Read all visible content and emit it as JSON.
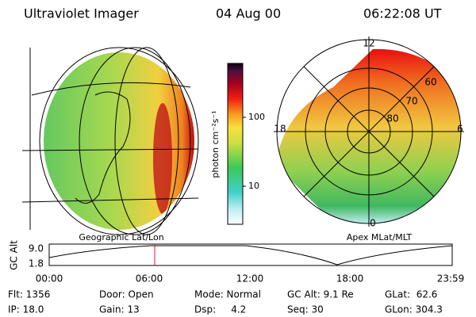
{
  "header": {
    "title": "Ultraviolet Imager",
    "date": "04 Aug 00",
    "time": "06:22:08 UT"
  },
  "left_map": {
    "label": "Geographic Lat/Lon"
  },
  "right_map": {
    "label": "Apex MLat/MLT",
    "mlt_labels": [
      "12",
      "18",
      "6",
      "0"
    ],
    "mlat_labels": [
      "60",
      "70",
      "80"
    ]
  },
  "colorbar": {
    "label": "photon cm⁻²s⁻¹",
    "ticks": [
      "100",
      "10"
    ]
  },
  "altitude_plot": {
    "label": "GC Alt",
    "yticks": [
      "9.0",
      "1.8"
    ],
    "xticks": [
      "00:00",
      "06:00",
      "12:00",
      "18:00",
      "23:59"
    ]
  },
  "footer": {
    "rows": [
      [
        "Flt: 1356",
        "Door: Open",
        "Mode: Normal",
        "GC Alt: 9.1 Re",
        "GLat:  62.6"
      ],
      [
        "IP: 18.0",
        "Gain: 13",
        "Dsp:     4.2",
        "Seq: 30",
        "GLon: 304.3"
      ]
    ]
  }
}
